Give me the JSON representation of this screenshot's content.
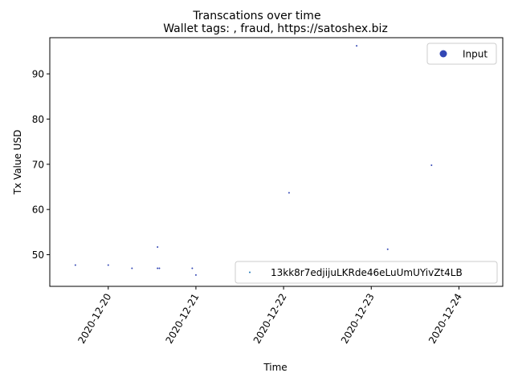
{
  "chart_data": {
    "type": "scatter",
    "title": "Transcations over time",
    "subtitle": "Wallet tags: , fraud, https://satoshex.biz",
    "xlabel": "Time",
    "ylabel": "Tx Value USD",
    "x_type": "date",
    "xlim": [
      "2020-12-19T08:00",
      "2020-12-24T12:00"
    ],
    "ylim": [
      43,
      98
    ],
    "x_ticks": [
      "2020-12-20",
      "2020-12-21",
      "2020-12-22",
      "2020-12-23",
      "2020-12-24"
    ],
    "y_ticks": [
      50,
      60,
      70,
      80,
      90
    ],
    "grid": false,
    "legend": {
      "placement": "top-right",
      "entries": [
        "Input"
      ]
    },
    "annotation_legend": {
      "placement": "bottom-right",
      "entries": [
        "13kk8r7edjijuLKRde46eLuUmUYivZt4LB"
      ]
    },
    "series": [
      {
        "name": "Input",
        "color": "#3246b4",
        "points": [
          {
            "x": "2020-12-19T15:00",
            "y": 47.7
          },
          {
            "x": "2020-12-20T00:00",
            "y": 47.7
          },
          {
            "x": "2020-12-20T06:30",
            "y": 47.0
          },
          {
            "x": "2020-12-20T13:30",
            "y": 51.7
          },
          {
            "x": "2020-12-20T13:30",
            "y": 47.0
          },
          {
            "x": "2020-12-20T14:00",
            "y": 47.0
          },
          {
            "x": "2020-12-20T23:00",
            "y": 47.0
          },
          {
            "x": "2020-12-21T00:00",
            "y": 45.5
          },
          {
            "x": "2020-12-21T15:00",
            "y": 45.5
          },
          {
            "x": "2020-12-21T16:00",
            "y": 46.5
          },
          {
            "x": "2020-12-22T01:30",
            "y": 63.7
          },
          {
            "x": "2020-12-22T20:00",
            "y": 96.2
          },
          {
            "x": "2020-12-23T04:30",
            "y": 51.2
          },
          {
            "x": "2020-12-23T16:30",
            "y": 69.8
          }
        ]
      }
    ]
  }
}
